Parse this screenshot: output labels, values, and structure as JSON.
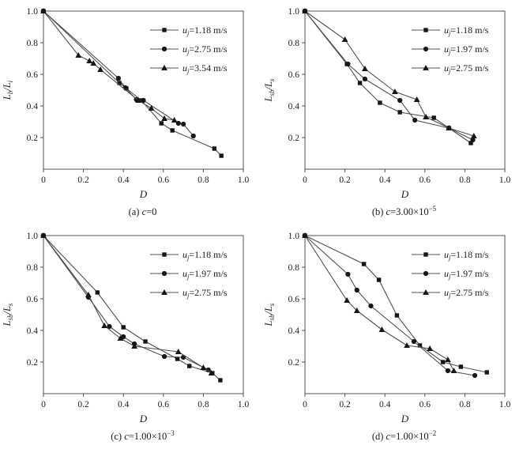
{
  "figure": {
    "background": "#ffffff",
    "colors": {
      "frame": "#4f4f4f",
      "line": "#4f4f4f",
      "marker": "#161616",
      "text": "#1c1c1c"
    }
  },
  "chart_data": [
    {
      "id": "a",
      "type": "line",
      "xlabel": "D",
      "ylabel": "Lb/Li",
      "ylabel_parts": {
        "num": "L",
        "num_sub": "b",
        "slash": "/",
        "den": "L",
        "den_sub": "i"
      },
      "xlim": [
        0,
        1.0
      ],
      "ylim": [
        0,
        1.0
      ],
      "xticks": [
        [
          0,
          "0"
        ],
        [
          0.2,
          "0.2"
        ],
        [
          0.4,
          "0.4"
        ],
        [
          0.6,
          "0.6"
        ],
        [
          0.8,
          "0.8"
        ],
        [
          1.0,
          "1.0"
        ]
      ],
      "yticks": [
        [
          0.2,
          "0.2"
        ],
        [
          0.4,
          "0.4"
        ],
        [
          0.6,
          "0.6"
        ],
        [
          0.8,
          "0.8"
        ],
        [
          1.0,
          "1.0"
        ]
      ],
      "legend_position": "top-right",
      "grid": false,
      "caption": {
        "index": "(a) ",
        "var": "c",
        "eq": "=0",
        "exp": ""
      },
      "series": [
        {
          "name": "uj=1.18 m/s",
          "marker": "square",
          "label": {
            "base": "u",
            "sub": "j",
            "rest": "=1.18 m/s"
          },
          "points": [
            [
              0,
              1.0
            ],
            [
              0.38,
              0.545
            ],
            [
              0.415,
              0.51
            ],
            [
              0.49,
              0.435
            ],
            [
              0.59,
              0.29
            ],
            [
              0.645,
              0.245
            ],
            [
              0.855,
              0.13
            ],
            [
              0.89,
              0.085
            ]
          ]
        },
        {
          "name": "uj=2.75 m/s",
          "marker": "circle",
          "label": {
            "base": "u",
            "sub": "j",
            "rest": "=2.75 m/s"
          },
          "points": [
            [
              0,
              1.0
            ],
            [
              0.375,
              0.575
            ],
            [
              0.41,
              0.515
            ],
            [
              0.465,
              0.44
            ],
            [
              0.5,
              0.435
            ],
            [
              0.675,
              0.29
            ],
            [
              0.7,
              0.285
            ],
            [
              0.75,
              0.21
            ]
          ]
        },
        {
          "name": "uj=3.54 m/s",
          "marker": "triangle",
          "label": {
            "base": "u",
            "sub": "j",
            "rest": "=3.54 m/s"
          },
          "points": [
            [
              0,
              1.0
            ],
            [
              0.175,
              0.72
            ],
            [
              0.23,
              0.685
            ],
            [
              0.25,
              0.67
            ],
            [
              0.285,
              0.63
            ],
            [
              0.475,
              0.435
            ],
            [
              0.54,
              0.385
            ],
            [
              0.605,
              0.32
            ],
            [
              0.655,
              0.31
            ]
          ]
        }
      ]
    },
    {
      "id": "b",
      "type": "line",
      "xlabel": "D",
      "ylabel": "Lsb/Ls",
      "ylabel_parts": {
        "num": "L",
        "num_sub": "sb",
        "slash": "/",
        "den": "L",
        "den_sub": "s"
      },
      "xlim": [
        0,
        1.0
      ],
      "ylim": [
        0,
        1.0
      ],
      "xticks": [
        [
          0,
          "0"
        ],
        [
          0.2,
          "0.2"
        ],
        [
          0.4,
          "0.4"
        ],
        [
          0.6,
          "0.6"
        ],
        [
          0.8,
          "0.8"
        ],
        [
          1.0,
          "1.0"
        ]
      ],
      "yticks": [
        [
          0.2,
          "0.2"
        ],
        [
          0.4,
          "0.4"
        ],
        [
          0.6,
          "0.6"
        ],
        [
          0.8,
          "0.8"
        ],
        [
          1.0,
          "1.0"
        ]
      ],
      "legend_position": "top-right",
      "grid": false,
      "caption": {
        "index": "(b) ",
        "var": "c",
        "eq": "=3.00×10",
        "exp": "−5"
      },
      "series": [
        {
          "name": "uj=1.18 m/s",
          "marker": "square",
          "label": {
            "base": "u",
            "sub": "j",
            "rest": "=1.18 m/s"
          },
          "points": [
            [
              0,
              1.0
            ],
            [
              0.21,
              0.665
            ],
            [
              0.275,
              0.545
            ],
            [
              0.375,
              0.42
            ],
            [
              0.475,
              0.36
            ],
            [
              0.645,
              0.325
            ],
            [
              0.72,
              0.26
            ],
            [
              0.83,
              0.165
            ]
          ]
        },
        {
          "name": "uj=1.97 m/s",
          "marker": "circle",
          "label": {
            "base": "u",
            "sub": "j",
            "rest": "=1.97 m/s"
          },
          "points": [
            [
              0,
              1.0
            ],
            [
              0.215,
              0.665
            ],
            [
              0.3,
              0.57
            ],
            [
              0.475,
              0.435
            ],
            [
              0.55,
              0.31
            ],
            [
              0.72,
              0.26
            ],
            [
              0.84,
              0.185
            ]
          ]
        },
        {
          "name": "uj=2.75 m/s",
          "marker": "triangle",
          "label": {
            "base": "u",
            "sub": "j",
            "rest": "=2.75 m/s"
          },
          "points": [
            [
              0,
              1.0
            ],
            [
              0.2,
              0.82
            ],
            [
              0.3,
              0.635
            ],
            [
              0.45,
              0.49
            ],
            [
              0.56,
              0.44
            ],
            [
              0.605,
              0.33
            ],
            [
              0.72,
              0.26
            ],
            [
              0.845,
              0.21
            ]
          ]
        }
      ]
    },
    {
      "id": "c",
      "type": "line",
      "xlabel": "D",
      "ylabel": "Lsb/Ls",
      "ylabel_parts": {
        "num": "L",
        "num_sub": "sb",
        "slash": "/",
        "den": "L",
        "den_sub": "s"
      },
      "xlim": [
        0,
        1.0
      ],
      "ylim": [
        0,
        1.0
      ],
      "xticks": [
        [
          0,
          "0"
        ],
        [
          0.2,
          "0.2"
        ],
        [
          0.4,
          "0.4"
        ],
        [
          0.6,
          "0.6"
        ],
        [
          0.8,
          "0.8"
        ],
        [
          1.0,
          "1.0"
        ]
      ],
      "yticks": [
        [
          0.2,
          "0.2"
        ],
        [
          0.4,
          "0.4"
        ],
        [
          0.6,
          "0.6"
        ],
        [
          0.8,
          "0.8"
        ],
        [
          1.0,
          "1.0"
        ]
      ],
      "legend_position": "top-right",
      "grid": false,
      "caption": {
        "index": "(c) ",
        "var": "c",
        "eq": "=1.00×10",
        "exp": "−3"
      },
      "series": [
        {
          "name": "uj=1.18 m/s",
          "marker": "square",
          "label": {
            "base": "u",
            "sub": "j",
            "rest": "=1.18 m/s"
          },
          "points": [
            [
              0,
              1.0
            ],
            [
              0.27,
              0.64
            ],
            [
              0.4,
              0.42
            ],
            [
              0.51,
              0.33
            ],
            [
              0.67,
              0.22
            ],
            [
              0.73,
              0.175
            ],
            [
              0.845,
              0.13
            ],
            [
              0.885,
              0.085
            ]
          ]
        },
        {
          "name": "uj=1.97 m/s",
          "marker": "circle",
          "label": {
            "base": "u",
            "sub": "j",
            "rest": "=1.97 m/s"
          },
          "points": [
            [
              0,
              1.0
            ],
            [
              0.225,
              0.61
            ],
            [
              0.33,
              0.425
            ],
            [
              0.4,
              0.36
            ],
            [
              0.455,
              0.315
            ],
            [
              0.605,
              0.235
            ],
            [
              0.7,
              0.23
            ],
            [
              0.825,
              0.15
            ]
          ]
        },
        {
          "name": "uj=2.75 m/s",
          "marker": "triangle",
          "label": {
            "base": "u",
            "sub": "j",
            "rest": "=2.75 m/s"
          },
          "points": [
            [
              0,
              1.0
            ],
            [
              0.225,
              0.625
            ],
            [
              0.305,
              0.43
            ],
            [
              0.385,
              0.35
            ],
            [
              0.455,
              0.3
            ],
            [
              0.675,
              0.265
            ],
            [
              0.8,
              0.165
            ],
            [
              0.84,
              0.13
            ]
          ]
        }
      ]
    },
    {
      "id": "d",
      "type": "line",
      "xlabel": "D",
      "ylabel": "Lsb/Ls",
      "ylabel_parts": {
        "num": "L",
        "num_sub": "sb",
        "slash": "/",
        "den": "L",
        "den_sub": "s"
      },
      "xlim": [
        0,
        1.0
      ],
      "ylim": [
        0,
        1.0
      ],
      "xticks": [
        [
          0,
          "0"
        ],
        [
          0.2,
          "0.2"
        ],
        [
          0.4,
          "0.4"
        ],
        [
          0.6,
          "0.6"
        ],
        [
          0.8,
          "0.8"
        ],
        [
          1.0,
          "1.0"
        ]
      ],
      "yticks": [
        [
          0.2,
          "0.2"
        ],
        [
          0.4,
          "0.4"
        ],
        [
          0.6,
          "0.6"
        ],
        [
          0.8,
          "0.8"
        ],
        [
          1.0,
          "1.0"
        ]
      ],
      "legend_position": "top-right",
      "grid": false,
      "caption": {
        "index": "(d) ",
        "var": "c",
        "eq": "=1.00×10",
        "exp": "−2"
      },
      "series": [
        {
          "name": "uj=1.18 m/s",
          "marker": "square",
          "label": {
            "base": "u",
            "sub": "j",
            "rest": "=1.18 m/s"
          },
          "points": [
            [
              0,
              1.0
            ],
            [
              0.295,
              0.82
            ],
            [
              0.37,
              0.72
            ],
            [
              0.46,
              0.495
            ],
            [
              0.575,
              0.305
            ],
            [
              0.69,
              0.2
            ],
            [
              0.78,
              0.17
            ],
            [
              0.91,
              0.135
            ]
          ]
        },
        {
          "name": "uj=1.97 m/s",
          "marker": "circle",
          "label": {
            "base": "u",
            "sub": "j",
            "rest": "=1.97 m/s"
          },
          "points": [
            [
              0,
              1.0
            ],
            [
              0.215,
              0.755
            ],
            [
              0.26,
              0.655
            ],
            [
              0.33,
              0.555
            ],
            [
              0.545,
              0.33
            ],
            [
              0.715,
              0.145
            ],
            [
              0.85,
              0.115
            ]
          ]
        },
        {
          "name": "uj=2.75 m/s",
          "marker": "triangle",
          "label": {
            "base": "u",
            "sub": "j",
            "rest": "=2.75 m/s"
          },
          "points": [
            [
              0,
              1.0
            ],
            [
              0.21,
              0.59
            ],
            [
              0.26,
              0.525
            ],
            [
              0.385,
              0.405
            ],
            [
              0.51,
              0.305
            ],
            [
              0.625,
              0.285
            ],
            [
              0.715,
              0.215
            ],
            [
              0.745,
              0.145
            ]
          ]
        }
      ]
    }
  ]
}
